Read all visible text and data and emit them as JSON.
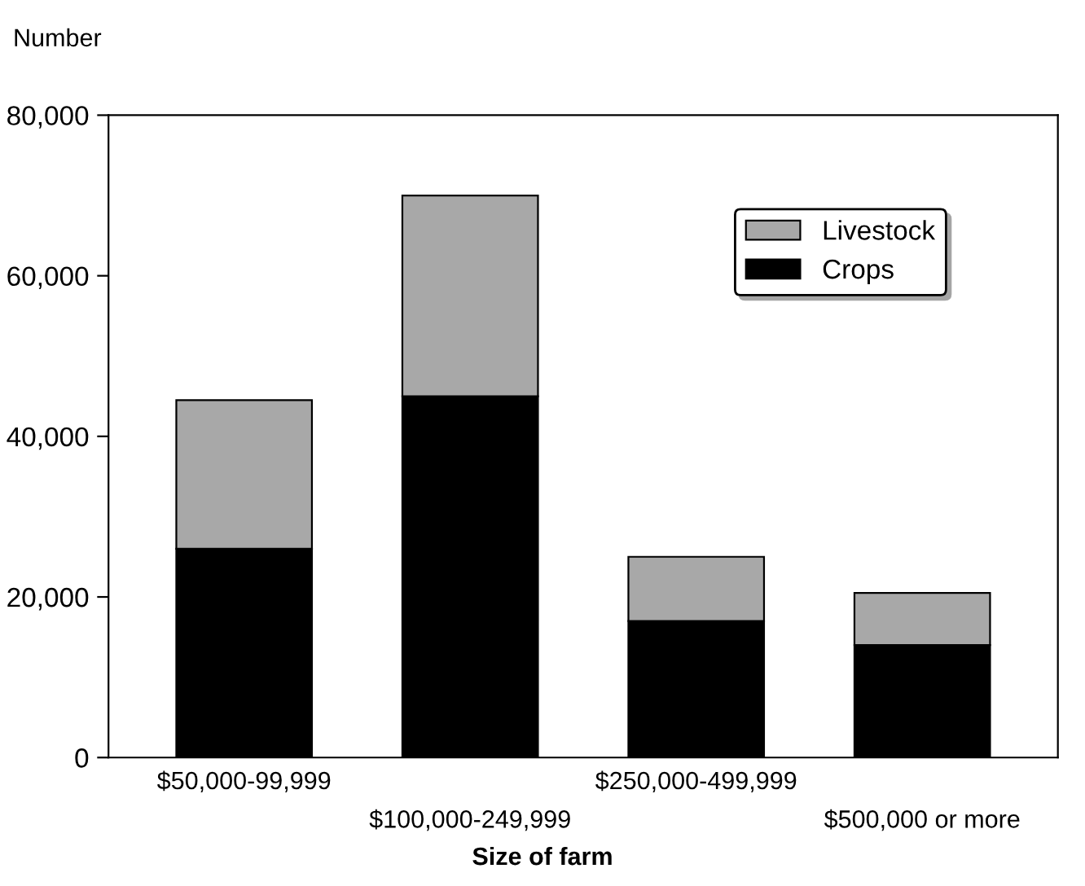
{
  "chart_data": {
    "type": "bar",
    "stacked": true,
    "ylabel": "Number",
    "xlabel": "Size of farm",
    "categories": [
      "$50,000-99,999",
      "$100,000-249,999",
      "$250,000-499,999",
      "$500,000 or more"
    ],
    "series": [
      {
        "name": "Crops",
        "color": "#000000",
        "values": [
          26000,
          45000,
          17000,
          14000
        ]
      },
      {
        "name": "Livestock",
        "color": "#a8a8a8",
        "values": [
          18500,
          25000,
          8000,
          6500
        ]
      }
    ],
    "ylim": [
      0,
      80000
    ],
    "yticks": [
      {
        "value": 0,
        "label": "0"
      },
      {
        "value": 20000,
        "label": "20,000"
      },
      {
        "value": 40000,
        "label": "40,000"
      },
      {
        "value": 60000,
        "label": "60,000"
      },
      {
        "value": 80000,
        "label": "80,000"
      }
    ],
    "grid": false,
    "legend": "top right"
  }
}
